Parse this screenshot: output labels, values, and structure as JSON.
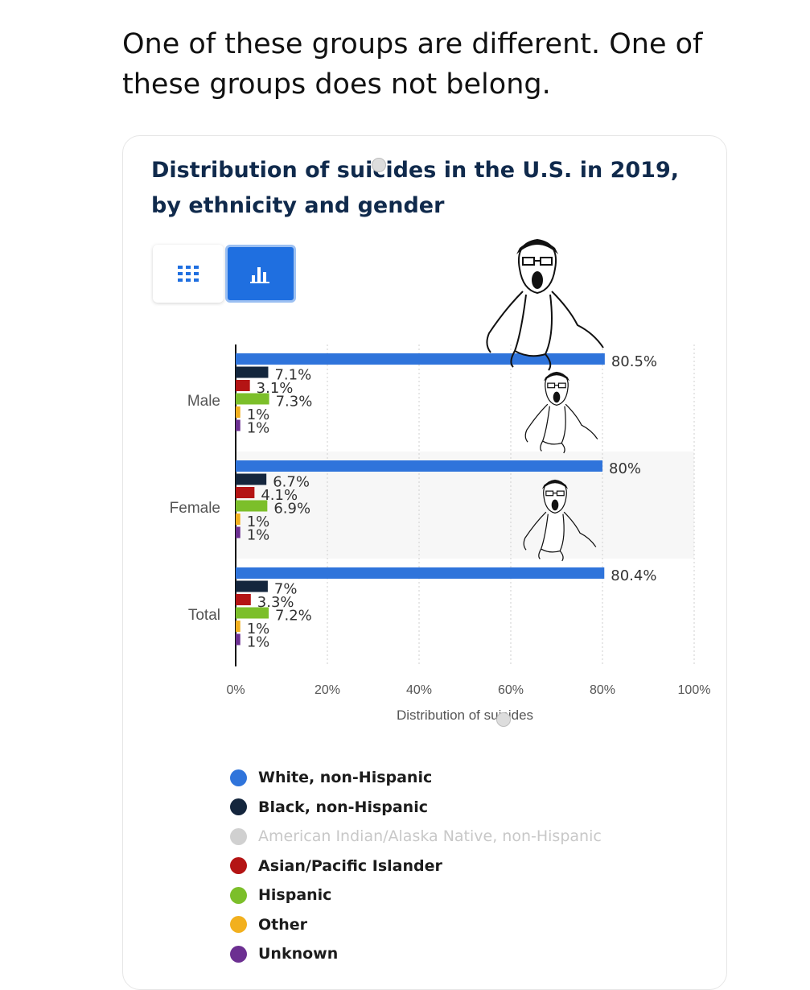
{
  "post": {
    "text": "One of these groups are different. One of these groups does not belong."
  },
  "view_toggle": {
    "table_icon": "grid-icon",
    "chart_icon": "bar-chart-icon",
    "selected": "chart"
  },
  "colors": {
    "white_non_hispanic": "#2f74db",
    "black_non_hispanic": "#14263d",
    "american_indian": "#d0d0d0",
    "asian_pacific": "#b41414",
    "hispanic": "#7cbf2a",
    "other": "#f2b01e",
    "unknown": "#6c2f91"
  },
  "chart_data": {
    "type": "bar",
    "orientation": "horizontal",
    "title": "Distribution of suicides in the U.S. in 2019, by ethnicity and gender",
    "xlabel": "Distribution of suicides",
    "ylabel": "",
    "xlim": [
      0,
      100
    ],
    "xticks": [
      "0%",
      "20%",
      "40%",
      "60%",
      "80%",
      "100%"
    ],
    "grid": true,
    "legend_position": "bottom",
    "categories": [
      "Male",
      "Female",
      "Total"
    ],
    "series": [
      {
        "name": "White, non-Hispanic",
        "values": [
          80.5,
          80,
          80.4
        ],
        "labels": [
          "80.5%",
          "80%",
          "80.4%"
        ]
      },
      {
        "name": "Black, non-Hispanic",
        "values": [
          7.1,
          6.7,
          7
        ],
        "labels": [
          "7.1%",
          "6.7%",
          "7%"
        ]
      },
      {
        "name": "American Indian/Alaska Native, non-Hispanic",
        "values": [
          0,
          0,
          0
        ],
        "labels": [
          "",
          "",
          ""
        ],
        "hidden": true
      },
      {
        "name": "Asian/Pacific Islander",
        "values": [
          3.1,
          4.1,
          3.3
        ],
        "labels": [
          "3.1%",
          "4.1%",
          "3.3%"
        ]
      },
      {
        "name": "Hispanic",
        "values": [
          7.3,
          6.9,
          7.2
        ],
        "labels": [
          "7.3%",
          "6.9%",
          "7.2%"
        ]
      },
      {
        "name": "Other",
        "values": [
          1,
          1,
          1
        ],
        "labels": [
          "1%",
          "1%",
          "1%"
        ]
      },
      {
        "name": "Unknown",
        "values": [
          1,
          1,
          1
        ],
        "labels": [
          "1%",
          "1%",
          "1%"
        ]
      }
    ]
  },
  "overlay_images": [
    "wojak-meme-figure",
    "wojak-meme-figure",
    "wojak-meme-figure"
  ]
}
